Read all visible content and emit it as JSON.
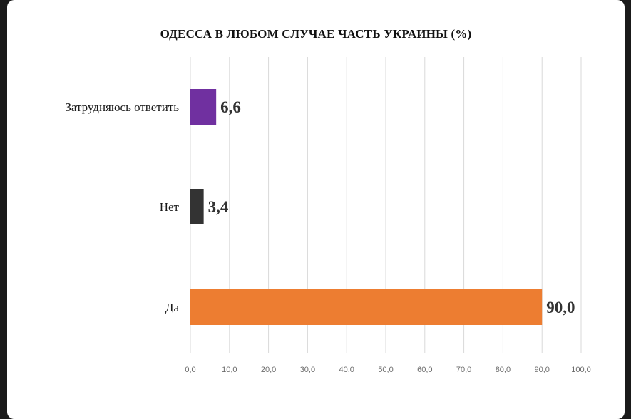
{
  "chart_data": {
    "type": "bar",
    "orientation": "horizontal",
    "title": "ОДЕССА В ЛЮБОМ СЛУЧАЕ ЧАСТЬ УКРАИНЫ (%)",
    "categories": [
      "Затрудняюсь ответить",
      "Нет",
      "Да"
    ],
    "values": [
      6.6,
      3.4,
      90.0
    ],
    "value_labels": [
      "6,6",
      "3,4",
      "90,0"
    ],
    "colors": [
      "#7030a0",
      "#333333",
      "#ed7d31"
    ],
    "xlim": [
      0,
      100
    ],
    "x_ticks": [
      "0,0",
      "10,0",
      "20,0",
      "30,0",
      "40,0",
      "50,0",
      "60,0",
      "70,0",
      "80,0",
      "90,0",
      "100,0"
    ],
    "grid": true,
    "legend": "none"
  }
}
